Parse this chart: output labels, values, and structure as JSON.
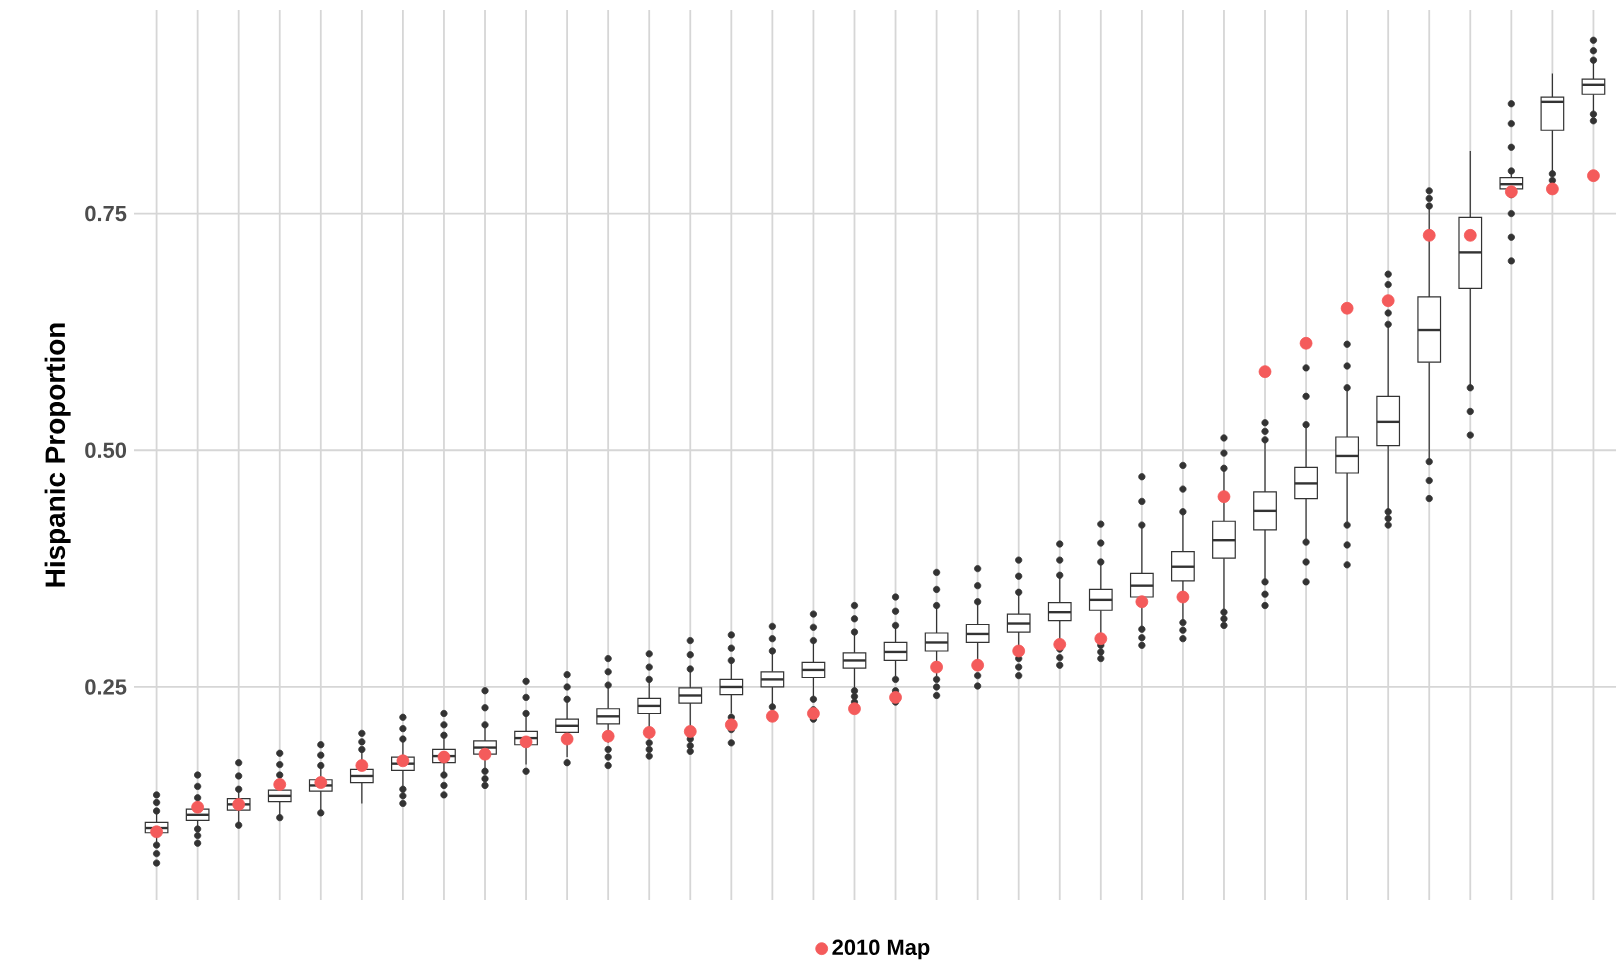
{
  "chart_data": {
    "type": "box",
    "ylabel": "Hispanic Proportion",
    "categories": [
      null,
      null,
      null,
      null,
      null,
      null,
      null,
      null,
      null,
      null,
      null,
      null,
      null,
      null,
      null,
      null,
      null,
      null,
      null,
      null,
      null,
      null,
      null,
      null,
      null,
      null,
      null,
      null,
      null,
      null,
      null,
      null,
      null,
      null,
      null,
      null
    ],
    "ylim": [
      0.025,
      0.965
    ],
    "yticks": [
      0.25,
      {
        "value": 0.5,
        "label": "0.50"
      },
      0.75
    ],
    "grid": true,
    "legend": "bottom",
    "series": [
      {
        "type": "box",
        "color": "#333333",
        "boxes": [
          {
            "low": 0.086,
            "q1": 0.096,
            "median": 0.101,
            "q3": 0.107,
            "high": 0.117,
            "outliers": [
              0.064,
              0.074,
              0.083,
              0.119,
              0.128,
              0.136
            ]
          },
          {
            "low": 0.102,
            "q1": 0.109,
            "median": 0.115,
            "q3": 0.121,
            "high": 0.131,
            "outliers": [
              0.085,
              0.093,
              0.1,
              0.133,
              0.145,
              0.157
            ]
          },
          {
            "low": 0.106,
            "q1": 0.12,
            "median": 0.126,
            "q3": 0.132,
            "high": 0.14,
            "outliers": [
              0.104,
              0.142,
              0.156,
              0.17
            ]
          },
          {
            "low": 0.114,
            "q1": 0.129,
            "median": 0.135,
            "q3": 0.141,
            "high": 0.155,
            "outliers": [
              0.112,
              0.157,
              0.168,
              0.18
            ]
          },
          {
            "low": 0.119,
            "q1": 0.14,
            "median": 0.146,
            "q3": 0.152,
            "high": 0.165,
            "outliers": [
              0.117,
              0.167,
              0.178,
              0.189
            ]
          },
          {
            "low": 0.127,
            "q1": 0.149,
            "median": 0.156,
            "q3": 0.163,
            "high": 0.182,
            "outliers": [
              0.184,
              0.192,
              0.201
            ]
          },
          {
            "low": 0.145,
            "q1": 0.162,
            "median": 0.169,
            "q3": 0.176,
            "high": 0.193,
            "outliers": [
              0.127,
              0.135,
              0.142,
              0.195,
              0.206,
              0.218
            ]
          },
          {
            "low": 0.159,
            "q1": 0.17,
            "median": 0.177,
            "q3": 0.184,
            "high": 0.197,
            "outliers": [
              0.136,
              0.146,
              0.157,
              0.199,
              0.21,
              0.222
            ]
          },
          {
            "low": 0.163,
            "q1": 0.179,
            "median": 0.186,
            "q3": 0.193,
            "high": 0.208,
            "outliers": [
              0.146,
              0.153,
              0.161,
              0.21,
              0.228,
              0.246
            ]
          },
          {
            "low": 0.168,
            "q1": 0.189,
            "median": 0.196,
            "q3": 0.203,
            "high": 0.22,
            "outliers": [
              0.161,
              0.222,
              0.239,
              0.256
            ]
          },
          {
            "low": 0.176,
            "q1": 0.202,
            "median": 0.209,
            "q3": 0.216,
            "high": 0.235,
            "outliers": [
              0.17,
              0.237,
              0.25,
              0.263
            ]
          },
          {
            "low": 0.191,
            "q1": 0.211,
            "median": 0.219,
            "q3": 0.227,
            "high": 0.25,
            "outliers": [
              0.167,
              0.176,
              0.184,
              0.252,
              0.266,
              0.28
            ]
          },
          {
            "low": 0.195,
            "q1": 0.222,
            "median": 0.23,
            "q3": 0.238,
            "high": 0.256,
            "outliers": [
              0.177,
              0.184,
              0.191,
              0.258,
              0.271,
              0.285
            ]
          },
          {
            "low": 0.199,
            "q1": 0.233,
            "median": 0.241,
            "q3": 0.249,
            "high": 0.267,
            "outliers": [
              0.182,
              0.188,
              0.195,
              0.269,
              0.284,
              0.299
            ]
          },
          {
            "low": 0.222,
            "q1": 0.242,
            "median": 0.25,
            "q3": 0.258,
            "high": 0.276,
            "outliers": [
              0.191,
              0.205,
              0.218,
              0.278,
              0.291,
              0.305
            ]
          },
          {
            "low": 0.23,
            "q1": 0.25,
            "median": 0.258,
            "q3": 0.266,
            "high": 0.286,
            "outliers": [
              0.229,
              0.288,
              0.301,
              0.314
            ]
          },
          {
            "low": 0.24,
            "q1": 0.26,
            "median": 0.268,
            "q3": 0.276,
            "high": 0.297,
            "outliers": [
              0.216,
              0.226,
              0.237,
              0.299,
              0.313,
              0.327
            ]
          },
          {
            "low": 0.249,
            "q1": 0.27,
            "median": 0.278,
            "q3": 0.286,
            "high": 0.306,
            "outliers": [
              0.234,
              0.24,
              0.246,
              0.308,
              0.322,
              0.336
            ]
          },
          {
            "low": 0.261,
            "q1": 0.278,
            "median": 0.287,
            "q3": 0.297,
            "high": 0.313,
            "outliers": [
              0.234,
              0.246,
              0.258,
              0.315,
              0.33,
              0.345
            ]
          },
          {
            "low": 0.261,
            "q1": 0.288,
            "median": 0.297,
            "q3": 0.307,
            "high": 0.334,
            "outliers": [
              0.241,
              0.25,
              0.258,
              0.336,
              0.353,
              0.371
            ]
          },
          {
            "low": 0.276,
            "q1": 0.297,
            "median": 0.306,
            "q3": 0.316,
            "high": 0.338,
            "outliers": [
              0.251,
              0.262,
              0.34,
              0.357,
              0.375
            ]
          },
          {
            "low": 0.283,
            "q1": 0.308,
            "median": 0.317,
            "q3": 0.327,
            "high": 0.348,
            "outliers": [
              0.262,
              0.271,
              0.28,
              0.35,
              0.367,
              0.384
            ]
          },
          {
            "low": 0.293,
            "q1": 0.32,
            "median": 0.329,
            "q3": 0.339,
            "high": 0.366,
            "outliers": [
              0.273,
              0.281,
              0.29,
              0.368,
              0.384,
              0.401
            ]
          },
          {
            "low": 0.297,
            "q1": 0.331,
            "median": 0.342,
            "q3": 0.353,
            "high": 0.38,
            "outliers": [
              0.28,
              0.287,
              0.294,
              0.382,
              0.402,
              0.422
            ]
          },
          {
            "low": 0.314,
            "q1": 0.345,
            "median": 0.357,
            "q3": 0.37,
            "high": 0.419,
            "outliers": [
              0.294,
              0.302,
              0.311,
              0.421,
              0.446,
              0.472
            ]
          },
          {
            "low": 0.321,
            "q1": 0.362,
            "median": 0.377,
            "q3": 0.393,
            "high": 0.433,
            "outliers": [
              0.301,
              0.31,
              0.318,
              0.435,
              0.459,
              0.484
            ]
          },
          {
            "low": 0.332,
            "q1": 0.386,
            "median": 0.405,
            "q3": 0.425,
            "high": 0.479,
            "outliers": [
              0.315,
              0.322,
              0.329,
              0.481,
              0.497,
              0.513
            ]
          },
          {
            "low": 0.364,
            "q1": 0.416,
            "median": 0.436,
            "q3": 0.456,
            "high": 0.509,
            "outliers": [
              0.336,
              0.348,
              0.361,
              0.511,
              0.52,
              0.529
            ]
          },
          {
            "low": 0.406,
            "q1": 0.449,
            "median": 0.465,
            "q3": 0.482,
            "high": 0.525,
            "outliers": [
              0.361,
              0.382,
              0.403,
              0.527,
              0.557,
              0.587
            ]
          },
          {
            "low": 0.424,
            "q1": 0.476,
            "median": 0.494,
            "q3": 0.514,
            "high": 0.564,
            "outliers": [
              0.379,
              0.4,
              0.421,
              0.566,
              0.589,
              0.612
            ]
          },
          {
            "low": 0.438,
            "q1": 0.505,
            "median": 0.53,
            "q3": 0.557,
            "high": 0.631,
            "outliers": [
              0.421,
              0.428,
              0.435,
              0.633,
              0.645,
              0.675,
              0.686
            ]
          },
          {
            "low": 0.491,
            "q1": 0.593,
            "median": 0.627,
            "q3": 0.662,
            "high": 0.756,
            "outliers": [
              0.449,
              0.468,
              0.488,
              0.758,
              0.766,
              0.774
            ]
          },
          {
            "low": 0.568,
            "q1": 0.671,
            "median": 0.709,
            "q3": 0.746,
            "high": 0.816,
            "outliers": [
              0.516,
              0.541,
              0.566
            ]
          },
          {
            "low": 0.772,
            "q1": 0.776,
            "median": 0.781,
            "q3": 0.788,
            "high": 0.792,
            "outliers": [
              0.7,
              0.725,
              0.75,
              0.77,
              0.795,
              0.82,
              0.845,
              0.866
            ]
          },
          {
            "low": 0.795,
            "q1": 0.838,
            "median": 0.868,
            "q3": 0.873,
            "high": 0.898,
            "outliers": [
              0.785,
              0.792
            ]
          },
          {
            "low": 0.858,
            "q1": 0.876,
            "median": 0.886,
            "q3": 0.892,
            "high": 0.91,
            "outliers": [
              0.848,
              0.855,
              0.912,
              0.922,
              0.933
            ]
          }
        ]
      },
      {
        "type": "scatter",
        "name": "2010 Map",
        "color": "#f45b5b",
        "marker": "circle",
        "values": [
          0.097,
          0.123,
          0.126,
          0.147,
          0.149,
          0.167,
          0.172,
          0.176,
          0.179,
          0.192,
          0.195,
          0.198,
          0.202,
          0.203,
          0.21,
          0.219,
          0.222,
          0.227,
          0.239,
          0.271,
          0.273,
          0.288,
          0.295,
          0.301,
          0.34,
          0.345,
          0.451,
          0.583,
          0.613,
          0.65,
          0.658,
          0.727,
          0.727,
          0.773,
          0.776,
          0.79
        ]
      }
    ]
  }
}
